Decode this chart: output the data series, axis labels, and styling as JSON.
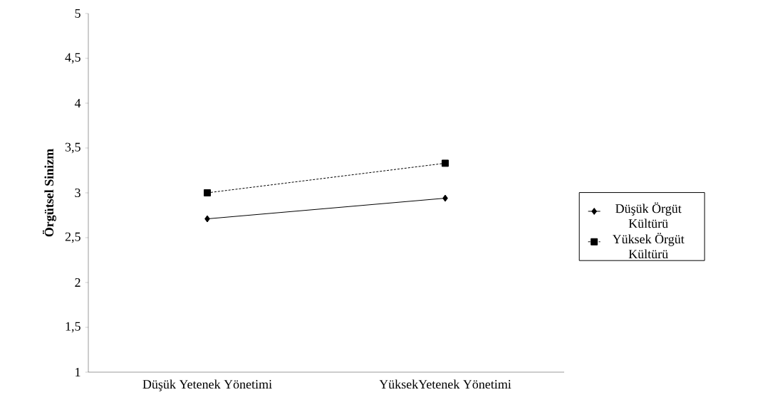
{
  "chart_data": {
    "type": "line",
    "ylabel": "Örgütsel Sinizm",
    "categories": [
      "Düşük Yetenek Yönetimi",
      "YüksekYetenek Yönetimi"
    ],
    "series": [
      {
        "name": "Düşük Örgüt Kültürü",
        "color": "#000000",
        "values": [
          2.71,
          2.94
        ],
        "marker": "diamond",
        "line_style": "solid"
      },
      {
        "name": "Yüksek Örgüt Kültürü",
        "color": "#000000",
        "values": [
          3.0,
          3.33
        ],
        "marker": "square",
        "line_style": "dashed"
      }
    ],
    "ylim": [
      1,
      5
    ],
    "yticks": [
      1,
      {
        "value": 1.5,
        "label": "1,5"
      },
      2,
      {
        "value": 2.5,
        "label": "2,5"
      },
      3,
      {
        "value": 3.5,
        "label": "3,5"
      },
      4,
      {
        "value": 4.5,
        "label": "4,5"
      },
      5
    ],
    "legend": "right"
  }
}
